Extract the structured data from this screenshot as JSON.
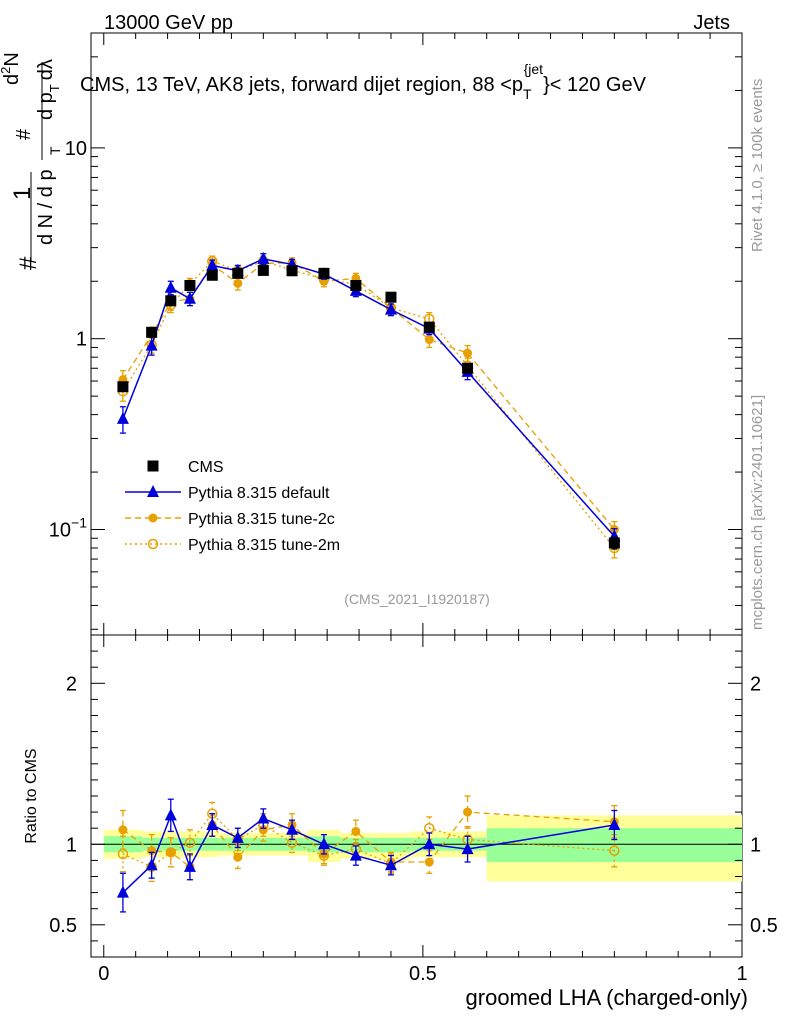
{
  "header": {
    "left": "13000 GeV pp",
    "right": "Jets"
  },
  "side_labels": {
    "rivet": "Rivet 4.1.0, ≥ 100k events",
    "mcplots": "mcplots.cern.ch [arXiv:2401.10621]"
  },
  "chart_data": {
    "type": "line",
    "title_main": "CMS, 13 TeV, AK8 jets, forward dijet region, 88 <p",
    "title_sub": "T",
    "title_sup": "{jet",
    "title_end": "}< 120 GeV",
    "analysis_id": "(CMS_2021_I1920187)",
    "xlabel": "groomed LHA (charged-only)",
    "ylabel_top": {
      "num_hash": "#",
      "one": "1",
      "den": "d N / d p",
      "den_sub": "T",
      "den_hash": "#",
      "num2": "d",
      "num2_sup": "2",
      "num2_rest": "N",
      "den2": "d p",
      "den2_sub": "T",
      "den2_rest": "dλ"
    },
    "ylabel_ratio": "Ratio to CMS",
    "xlim": [
      -0.02,
      1.0
    ],
    "ylim_log": [
      0.028,
      40
    ],
    "ylim_ratio": [
      0.3,
      2.3
    ],
    "x_ticks": [
      {
        "value": 0,
        "label": "0"
      },
      {
        "value": 0.5,
        "label": "0.5"
      },
      {
        "value": 1,
        "label": "1"
      }
    ],
    "y_ticks_main": [
      {
        "value": 0.1,
        "base": "10",
        "exp": "−1"
      },
      {
        "value": 1,
        "base": "1",
        "exp": ""
      },
      {
        "value": 10,
        "base": "10",
        "exp": ""
      }
    ],
    "y_ticks_ratio": [
      {
        "value": 0.5,
        "label": "0.5"
      },
      {
        "value": 1,
        "label": "1"
      },
      {
        "value": 2,
        "label": "2"
      }
    ],
    "bands": [
      {
        "x0": 0.0,
        "x1": 0.06,
        "y_low": 0.91,
        "y_high": 1.09,
        "g_low": 0.95,
        "g_high": 1.05
      },
      {
        "x0": 0.06,
        "x1": 0.12,
        "y_low": 0.92,
        "y_high": 1.08,
        "g_low": 0.96,
        "g_high": 1.04
      },
      {
        "x0": 0.12,
        "x1": 0.18,
        "y_low": 0.92,
        "y_high": 1.08,
        "g_low": 0.96,
        "g_high": 1.04
      },
      {
        "x0": 0.18,
        "x1": 0.25,
        "y_low": 0.93,
        "y_high": 1.07,
        "g_low": 0.96,
        "g_high": 1.04
      },
      {
        "x0": 0.25,
        "x1": 0.32,
        "y_low": 0.93,
        "y_high": 1.07,
        "g_low": 0.96,
        "g_high": 1.04
      },
      {
        "x0": 0.32,
        "x1": 0.37,
        "y_low": 0.89,
        "y_high": 1.09,
        "g_low": 0.95,
        "g_high": 1.05
      },
      {
        "x0": 0.37,
        "x1": 0.43,
        "y_low": 0.91,
        "y_high": 1.07,
        "g_low": 0.95,
        "g_high": 1.04
      },
      {
        "x0": 0.43,
        "x1": 0.48,
        "y_low": 0.9,
        "y_high": 1.07,
        "g_low": 0.95,
        "g_high": 1.04
      },
      {
        "x0": 0.48,
        "x1": 0.6,
        "y_low": 0.92,
        "y_high": 1.08,
        "g_low": 0.96,
        "g_high": 1.04
      },
      {
        "x0": 0.6,
        "x1": 1.0,
        "y_low": 0.77,
        "y_high": 1.18,
        "g_low": 0.89,
        "g_high": 1.1
      }
    ],
    "series": [
      {
        "name": "CMS",
        "legend": "CMS",
        "color": "#000000",
        "marker": "square",
        "line": "none",
        "x": [
          0.03,
          0.075,
          0.105,
          0.135,
          0.17,
          0.21,
          0.25,
          0.295,
          0.345,
          0.395,
          0.45,
          0.51,
          0.57,
          0.8
        ],
        "y": [
          0.56,
          1.08,
          1.58,
          1.9,
          2.15,
          2.2,
          2.28,
          2.27,
          2.2,
          1.9,
          1.65,
          1.15,
          0.7,
          0.085
        ],
        "err": [
          0.03,
          0.05,
          0.06,
          0.06,
          0.07,
          0.07,
          0.07,
          0.07,
          0.07,
          0.06,
          0.06,
          0.05,
          0.04,
          0.006
        ]
      },
      {
        "name": "Pythia 8.315 default",
        "legend": "Pythia 8.315 default",
        "color": "#0000dd",
        "marker": "triangle",
        "line": "solid",
        "x": [
          0.03,
          0.075,
          0.105,
          0.135,
          0.17,
          0.21,
          0.25,
          0.295,
          0.345,
          0.395,
          0.45,
          0.51,
          0.57,
          0.8
        ],
        "y": [
          0.38,
          0.92,
          1.85,
          1.62,
          2.42,
          2.27,
          2.62,
          2.45,
          2.18,
          1.78,
          1.42,
          1.13,
          0.67,
          0.092
        ],
        "err": [
          0.06,
          0.1,
          0.15,
          0.13,
          0.16,
          0.15,
          0.17,
          0.15,
          0.13,
          0.12,
          0.1,
          0.08,
          0.06,
          0.009
        ],
        "ratio": [
          0.7,
          0.87,
          1.18,
          0.86,
          1.12,
          1.04,
          1.16,
          1.09,
          1.0,
          0.93,
          0.87,
          1.0,
          0.97,
          1.12
        ],
        "ratio_err": [
          0.12,
          0.08,
          0.1,
          0.08,
          0.07,
          0.06,
          0.06,
          0.06,
          0.06,
          0.06,
          0.06,
          0.07,
          0.08,
          0.09
        ]
      },
      {
        "name": "Pythia 8.315 tune-2c",
        "legend": "Pythia 8.315 tune-2c",
        "color": "#e8a000",
        "marker": "circle-filled",
        "line": "dashed",
        "x": [
          0.03,
          0.075,
          0.105,
          0.135,
          0.17,
          0.21,
          0.25,
          0.295,
          0.345,
          0.395,
          0.45,
          0.51,
          0.57,
          0.8
        ],
        "y": [
          0.61,
          1.05,
          1.55,
          1.62,
          2.45,
          1.95,
          2.48,
          2.5,
          2.0,
          2.07,
          1.45,
          0.99,
          0.84,
          0.1
        ],
        "err": [
          0.07,
          0.1,
          0.14,
          0.13,
          0.16,
          0.15,
          0.16,
          0.15,
          0.13,
          0.13,
          0.11,
          0.09,
          0.08,
          0.01
        ],
        "ratio": [
          1.09,
          0.96,
          0.95,
          0.86,
          1.12,
          0.92,
          1.09,
          1.12,
          0.94,
          1.08,
          0.89,
          0.89,
          1.2,
          1.14
        ],
        "ratio_err": [
          0.12,
          0.1,
          0.09,
          0.08,
          0.07,
          0.07,
          0.07,
          0.07,
          0.06,
          0.07,
          0.06,
          0.07,
          0.1,
          0.1
        ]
      },
      {
        "name": "Pythia 8.315 tune-2m",
        "legend": "Pythia 8.315 tune-2m",
        "color": "#e8a000",
        "marker": "circle-open",
        "line": "dotted",
        "x": [
          0.03,
          0.075,
          0.105,
          0.135,
          0.17,
          0.21,
          0.25,
          0.295,
          0.345,
          0.395,
          0.45,
          0.51,
          0.57,
          0.8
        ],
        "y": [
          0.53,
          0.93,
          1.5,
          1.93,
          2.55,
          2.27,
          2.55,
          2.29,
          2.05,
          1.93,
          1.45,
          1.27,
          0.72,
          0.08
        ],
        "err": [
          0.06,
          0.09,
          0.13,
          0.14,
          0.16,
          0.15,
          0.16,
          0.14,
          0.13,
          0.13,
          0.11,
          0.1,
          0.07,
          0.009
        ],
        "ratio": [
          0.94,
          0.86,
          0.95,
          1.01,
          1.19,
          1.03,
          1.12,
          1.01,
          0.93,
          0.97,
          0.88,
          1.1,
          1.03,
          0.96
        ],
        "ratio_err": [
          0.11,
          0.09,
          0.09,
          0.08,
          0.07,
          0.07,
          0.07,
          0.06,
          0.06,
          0.06,
          0.06,
          0.07,
          0.08,
          0.1
        ]
      }
    ]
  }
}
